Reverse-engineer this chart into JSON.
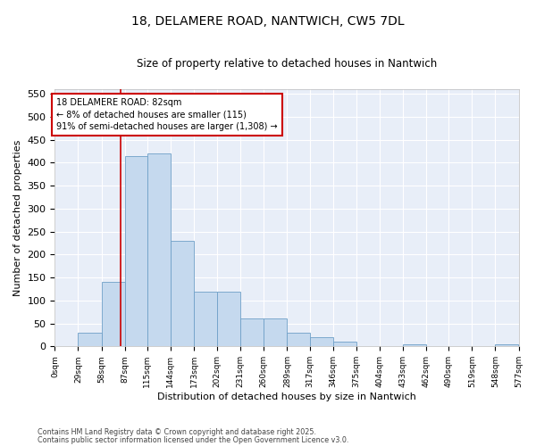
{
  "title_line1": "18, DELAMERE ROAD, NANTWICH, CW5 7DL",
  "title_line2": "Size of property relative to detached houses in Nantwich",
  "xlabel": "Distribution of detached houses by size in Nantwich",
  "ylabel": "Number of detached properties",
  "bar_color": "#c5d9ee",
  "bar_edge_color": "#6fa0c8",
  "fig_bg_color": "#ffffff",
  "plot_bg_color": "#e8eef8",
  "grid_color": "#ffffff",
  "vline_color": "#cc0000",
  "vline_x": 82,
  "annotation_box_edge_color": "#cc0000",
  "annotation_text": "18 DELAMERE ROAD: 82sqm\n← 8% of detached houses are smaller (115)\n91% of semi-detached houses are larger (1,308) →",
  "footer_line1": "Contains HM Land Registry data © Crown copyright and database right 2025.",
  "footer_line2": "Contains public sector information licensed under the Open Government Licence v3.0.",
  "bin_edges": [
    0,
    29,
    58,
    87,
    115,
    144,
    173,
    202,
    231,
    260,
    289,
    317,
    346,
    375,
    404,
    433,
    462,
    490,
    519,
    548,
    577
  ],
  "bin_labels": [
    "0sqm",
    "29sqm",
    "58sqm",
    "87sqm",
    "115sqm",
    "144sqm",
    "173sqm",
    "202sqm",
    "231sqm",
    "260sqm",
    "289sqm",
    "317sqm",
    "346sqm",
    "375sqm",
    "404sqm",
    "433sqm",
    "462sqm",
    "490sqm",
    "519sqm",
    "548sqm",
    "577sqm"
  ],
  "counts": [
    0,
    30,
    140,
    415,
    420,
    230,
    120,
    120,
    60,
    60,
    30,
    20,
    10,
    0,
    0,
    5,
    0,
    0,
    0,
    5,
    0
  ],
  "ylim": [
    0,
    560
  ],
  "yticks": [
    0,
    50,
    100,
    150,
    200,
    250,
    300,
    350,
    400,
    450,
    500,
    550
  ]
}
